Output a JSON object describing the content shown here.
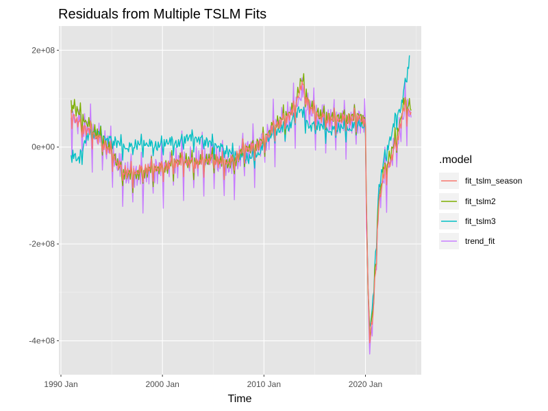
{
  "chart_data": {
    "type": "line",
    "title": "Residuals from Multiple TSLM Fits",
    "xlabel": "Time",
    "ylabel": "",
    "x_ticks": [
      "1990 Jan",
      "2000 Jan",
      "2010 Jan",
      "2020 Jan"
    ],
    "x_tick_years": [
      1990,
      2000,
      2010,
      2020
    ],
    "y_ticks": [
      "2e+08",
      "0e+00",
      "-2e+08",
      "-4e+08"
    ],
    "y_tick_values": [
      200000000,
      0,
      -200000000,
      -400000000
    ],
    "xlim": [
      1989.8,
      2025.5
    ],
    "ylim": [
      -470000000,
      250000000
    ],
    "grid": true,
    "panel_background": "#e5e5e5",
    "legend": {
      "title": ".model",
      "position": "right"
    },
    "series": [
      {
        "name": "fit_tslm_season",
        "color": "#f8766d",
        "seasonal_amplitude": 0.4,
        "points": [
          [
            1991.0,
            70000000
          ],
          [
            1992.0,
            40000000
          ],
          [
            1993.0,
            30000000
          ],
          [
            1994.0,
            10000000
          ],
          [
            1995.0,
            -15000000
          ],
          [
            1996.0,
            -50000000
          ],
          [
            1997.0,
            -55000000
          ],
          [
            1998.0,
            -50000000
          ],
          [
            1999.0,
            -45000000
          ],
          [
            2000.0,
            -45000000
          ],
          [
            2001.0,
            -35000000
          ],
          [
            2002.0,
            -30000000
          ],
          [
            2003.0,
            -35000000
          ],
          [
            2004.0,
            -30000000
          ],
          [
            2005.0,
            -25000000
          ],
          [
            2006.0,
            -35000000
          ],
          [
            2007.0,
            -30000000
          ],
          [
            2008.0,
            -5000000
          ],
          [
            2009.0,
            -5000000
          ],
          [
            2010.0,
            10000000
          ],
          [
            2011.0,
            40000000
          ],
          [
            2012.0,
            55000000
          ],
          [
            2013.0,
            75000000
          ],
          [
            2013.7,
            130000000
          ],
          [
            2014.5,
            80000000
          ],
          [
            2015.5,
            60000000
          ],
          [
            2016.5,
            55000000
          ],
          [
            2017.5,
            55000000
          ],
          [
            2018.5,
            55000000
          ],
          [
            2019.5,
            60000000
          ],
          [
            2020.0,
            40000000
          ],
          [
            2020.2,
            -250000000
          ],
          [
            2020.4,
            -400000000
          ],
          [
            2020.8,
            -340000000
          ],
          [
            2021.3,
            -120000000
          ],
          [
            2021.8,
            -60000000
          ],
          [
            2022.5,
            -30000000
          ],
          [
            2023.2,
            20000000
          ],
          [
            2023.8,
            80000000
          ],
          [
            2024.5,
            70000000
          ]
        ]
      },
      {
        "name": "fit_tslm2",
        "color": "#7cae00",
        "seasonal_amplitude": 0.45,
        "points": [
          [
            1991.0,
            95000000
          ],
          [
            1992.0,
            60000000
          ],
          [
            1993.0,
            40000000
          ],
          [
            1994.0,
            15000000
          ],
          [
            1995.0,
            -10000000
          ],
          [
            1996.0,
            -55000000
          ],
          [
            1997.0,
            -60000000
          ],
          [
            1998.0,
            -55000000
          ],
          [
            1999.0,
            -45000000
          ],
          [
            2000.0,
            -45000000
          ],
          [
            2001.0,
            -35000000
          ],
          [
            2002.0,
            -25000000
          ],
          [
            2003.0,
            -35000000
          ],
          [
            2004.0,
            -30000000
          ],
          [
            2005.0,
            -25000000
          ],
          [
            2006.0,
            -35000000
          ],
          [
            2007.0,
            -35000000
          ],
          [
            2008.0,
            -5000000
          ],
          [
            2009.0,
            0
          ],
          [
            2010.0,
            15000000
          ],
          [
            2011.0,
            45000000
          ],
          [
            2012.0,
            60000000
          ],
          [
            2013.0,
            80000000
          ],
          [
            2013.7,
            140000000
          ],
          [
            2014.5,
            85000000
          ],
          [
            2015.5,
            65000000
          ],
          [
            2016.5,
            60000000
          ],
          [
            2017.5,
            60000000
          ],
          [
            2018.5,
            60000000
          ],
          [
            2019.5,
            65000000
          ],
          [
            2020.0,
            45000000
          ],
          [
            2020.2,
            -250000000
          ],
          [
            2020.4,
            -390000000
          ],
          [
            2020.8,
            -330000000
          ],
          [
            2021.3,
            -110000000
          ],
          [
            2021.8,
            -50000000
          ],
          [
            2022.5,
            -15000000
          ],
          [
            2023.2,
            30000000
          ],
          [
            2023.8,
            90000000
          ],
          [
            2024.5,
            85000000
          ]
        ]
      },
      {
        "name": "fit_tslm3",
        "color": "#00bfc4",
        "seasonal_amplitude": 0.35,
        "points": [
          [
            1991.0,
            -10000000
          ],
          [
            1991.8,
            -30000000
          ],
          [
            1992.5,
            20000000
          ],
          [
            1993.5,
            30000000
          ],
          [
            1994.5,
            15000000
          ],
          [
            1995.5,
            10000000
          ],
          [
            1996.5,
            -5000000
          ],
          [
            1997.5,
            5000000
          ],
          [
            1998.5,
            5000000
          ],
          [
            1999.5,
            0
          ],
          [
            2000.5,
            10000000
          ],
          [
            2001.5,
            5000000
          ],
          [
            2002.5,
            20000000
          ],
          [
            2003.5,
            15000000
          ],
          [
            2004.5,
            10000000
          ],
          [
            2005.5,
            0
          ],
          [
            2006.5,
            -10000000
          ],
          [
            2007.5,
            -20000000
          ],
          [
            2008.5,
            -25000000
          ],
          [
            2009.5,
            -15000000
          ],
          [
            2010.5,
            20000000
          ],
          [
            2011.5,
            35000000
          ],
          [
            2012.5,
            40000000
          ],
          [
            2013.5,
            80000000
          ],
          [
            2014.5,
            40000000
          ],
          [
            2015.5,
            45000000
          ],
          [
            2016.5,
            30000000
          ],
          [
            2017.5,
            40000000
          ],
          [
            2018.5,
            35000000
          ],
          [
            2019.5,
            50000000
          ],
          [
            2020.0,
            30000000
          ],
          [
            2020.2,
            -250000000
          ],
          [
            2020.4,
            -380000000
          ],
          [
            2020.8,
            -310000000
          ],
          [
            2021.3,
            -90000000
          ],
          [
            2021.8,
            -30000000
          ],
          [
            2022.5,
            20000000
          ],
          [
            2023.0,
            60000000
          ],
          [
            2023.5,
            80000000
          ],
          [
            2024.0,
            140000000
          ],
          [
            2024.4,
            190000000
          ]
        ]
      },
      {
        "name": "trend_fit",
        "color": "#c77cff",
        "seasonal_amplitude": 1.0,
        "points": [
          [
            1991.0,
            60000000
          ],
          [
            1992.0,
            40000000
          ],
          [
            1993.0,
            25000000
          ],
          [
            1994.0,
            10000000
          ],
          [
            1995.0,
            -15000000
          ],
          [
            1996.0,
            -55000000
          ],
          [
            1997.0,
            -60000000
          ],
          [
            1998.0,
            -60000000
          ],
          [
            1999.0,
            -50000000
          ],
          [
            2000.0,
            -45000000
          ],
          [
            2001.0,
            -35000000
          ],
          [
            2002.0,
            -30000000
          ],
          [
            2003.0,
            -35000000
          ],
          [
            2004.0,
            -30000000
          ],
          [
            2005.0,
            -25000000
          ],
          [
            2006.0,
            -40000000
          ],
          [
            2007.0,
            -40000000
          ],
          [
            2008.0,
            -10000000
          ],
          [
            2009.0,
            -5000000
          ],
          [
            2010.0,
            10000000
          ],
          [
            2011.0,
            40000000
          ],
          [
            2012.0,
            55000000
          ],
          [
            2013.0,
            70000000
          ],
          [
            2013.7,
            110000000
          ],
          [
            2014.5,
            70000000
          ],
          [
            2015.5,
            55000000
          ],
          [
            2016.5,
            50000000
          ],
          [
            2017.5,
            50000000
          ],
          [
            2018.5,
            50000000
          ],
          [
            2019.5,
            55000000
          ],
          [
            2020.0,
            40000000
          ],
          [
            2020.2,
            -260000000
          ],
          [
            2020.4,
            -420000000
          ],
          [
            2020.8,
            -340000000
          ],
          [
            2021.3,
            -110000000
          ],
          [
            2021.8,
            -70000000
          ],
          [
            2022.5,
            -30000000
          ],
          [
            2023.0,
            0
          ],
          [
            2023.5,
            40000000
          ],
          [
            2024.0,
            80000000
          ],
          [
            2024.5,
            60000000
          ]
        ]
      }
    ]
  }
}
